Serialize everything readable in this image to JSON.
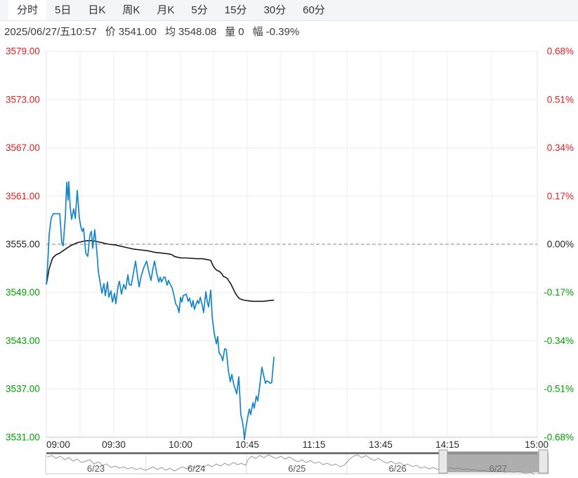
{
  "tabbar": {
    "tabs": [
      {
        "label": "分时",
        "active": true
      },
      {
        "label": "5日",
        "active": false
      },
      {
        "label": "日K",
        "active": false
      },
      {
        "label": "周K",
        "active": false
      },
      {
        "label": "月K",
        "active": false
      },
      {
        "label": "5分",
        "active": false
      },
      {
        "label": "15分",
        "active": false
      },
      {
        "label": "30分",
        "active": false
      },
      {
        "label": "60分",
        "active": false
      }
    ]
  },
  "info": {
    "datetime": "2025/06/27/五10:57",
    "price_label": "价",
    "price": "3541.00",
    "avg_label": "均",
    "avg": "3548.08",
    "volume_label": "量",
    "volume": "0",
    "change_label": "幅",
    "change": "-0.39%"
  },
  "colors": {
    "up": "#e02020",
    "down": "#00a000",
    "neutral": "#222222",
    "price_line": "#1685c8",
    "avg_line": "#1a1a1a",
    "grid": "#ececec",
    "zero_line": "#8a8a8a",
    "nav_line": "#9a9a9a",
    "nav_selection": "rgba(125,125,125,0.62)"
  },
  "chart_data": {
    "type": "line",
    "title": "",
    "xlabel": "",
    "ylabel": "",
    "base_price": 3555.0,
    "ylim": [
      3528,
      3582
    ],
    "grid": true,
    "y_ticks": [
      {
        "price": 3579,
        "label": "3579.00",
        "pct": "0.68%"
      },
      {
        "price": 3573,
        "label": "3573.00",
        "pct": "0.51%"
      },
      {
        "price": 3567,
        "label": "3567.00",
        "pct": "0.34%"
      },
      {
        "price": 3561,
        "label": "3561.00",
        "pct": "0.17%"
      },
      {
        "price": 3555,
        "label": "3555.00",
        "pct": "0.00%"
      },
      {
        "price": 3549,
        "label": "3549.00",
        "pct": "-0.17%"
      },
      {
        "price": 3543,
        "label": "3543.00",
        "pct": "-0.34%"
      },
      {
        "price": 3537,
        "label": "3537.00",
        "pct": "-0.51%"
      },
      {
        "price": 3531,
        "label": "3531.00",
        "pct": "-0.68%"
      }
    ],
    "x_ticks": [
      "09:00",
      "09:30",
      "10:00",
      "10:45",
      "11:15",
      "13:45",
      "14:15",
      "15:00"
    ],
    "session_minutes": 225,
    "series": [
      {
        "name": "price",
        "points": [
          [
            0,
            3550.0
          ],
          [
            0.6,
            3552.5
          ],
          [
            1.3,
            3556.3
          ],
          [
            2.2,
            3558.3
          ],
          [
            3.1,
            3558.8
          ],
          [
            4.4,
            3558.8
          ],
          [
            6,
            3558.8
          ],
          [
            6.9,
            3555.2
          ],
          [
            7.5,
            3554.8
          ],
          [
            8.5,
            3558.5
          ],
          [
            9.1,
            3562.7
          ],
          [
            9.7,
            3560.5
          ],
          [
            10,
            3562.8
          ],
          [
            10.7,
            3559.5
          ],
          [
            11.3,
            3558.1
          ],
          [
            12.2,
            3559.4
          ],
          [
            12.9,
            3558.2
          ],
          [
            13.8,
            3561.7
          ],
          [
            14.7,
            3558.3
          ],
          [
            15.4,
            3557.2
          ],
          [
            16,
            3556.6
          ],
          [
            16.6,
            3557.0
          ],
          [
            17.6,
            3553.9
          ],
          [
            18.5,
            3553.5
          ],
          [
            19.4,
            3556.1
          ],
          [
            20.1,
            3556.6
          ],
          [
            20.7,
            3554.5
          ],
          [
            21.6,
            3556.8
          ],
          [
            22.6,
            3553.9
          ],
          [
            23.2,
            3551.6
          ],
          [
            24.1,
            3550.1
          ],
          [
            24.8,
            3548.9
          ],
          [
            25.7,
            3550.1
          ],
          [
            26.3,
            3548.6
          ],
          [
            27.3,
            3550.3
          ],
          [
            27.9,
            3548.4
          ],
          [
            28.8,
            3549.2
          ],
          [
            29.5,
            3547.8
          ],
          [
            30.4,
            3548.9
          ],
          [
            31,
            3547.6
          ],
          [
            32,
            3549.8
          ],
          [
            32.6,
            3550.4
          ],
          [
            33.5,
            3548.8
          ],
          [
            34.5,
            3550.0
          ],
          [
            35.4,
            3549.4
          ],
          [
            36.4,
            3551.2
          ],
          [
            37,
            3550.0
          ],
          [
            37.9,
            3549.9
          ],
          [
            38.9,
            3551.5
          ],
          [
            39.8,
            3552.9
          ],
          [
            40.8,
            3550.8
          ],
          [
            41.4,
            3549.7
          ],
          [
            42.3,
            3551.0
          ],
          [
            43.6,
            3552.2
          ],
          [
            44.8,
            3552.9
          ],
          [
            45.8,
            3551.5
          ],
          [
            46.7,
            3550.5
          ],
          [
            47.6,
            3552.0
          ],
          [
            48.3,
            3552.9
          ],
          [
            49.2,
            3551.5
          ],
          [
            50.2,
            3550.3
          ],
          [
            50.8,
            3550.9
          ],
          [
            51.4,
            3550.3
          ],
          [
            52.4,
            3550.9
          ],
          [
            53,
            3550.9
          ],
          [
            53.9,
            3549.9
          ],
          [
            54.5,
            3550.5
          ],
          [
            55.5,
            3549.9
          ],
          [
            56.1,
            3549.6
          ],
          [
            57.1,
            3548.5
          ],
          [
            57.7,
            3547.6
          ],
          [
            58.6,
            3547.2
          ],
          [
            59.2,
            3546.5
          ],
          [
            59.9,
            3548.4
          ],
          [
            60.5,
            3547.8
          ],
          [
            61.1,
            3548.6
          ],
          [
            61.8,
            3548.7
          ],
          [
            62.4,
            3548.8
          ],
          [
            63.3,
            3547.9
          ],
          [
            63.9,
            3548.3
          ],
          [
            64.9,
            3547.2
          ],
          [
            65.5,
            3548.0
          ],
          [
            66.1,
            3546.9
          ],
          [
            66.8,
            3547.5
          ],
          [
            67.4,
            3548.0
          ],
          [
            68,
            3547.6
          ],
          [
            68.7,
            3548.4
          ],
          [
            69.6,
            3547.4
          ],
          [
            70.2,
            3546.5
          ],
          [
            71.2,
            3549.1
          ],
          [
            71.8,
            3547.9
          ],
          [
            72.4,
            3547.2
          ],
          [
            73.4,
            3549.3
          ],
          [
            74,
            3546.0
          ],
          [
            74.9,
            3544.0
          ],
          [
            75.9,
            3542.6
          ],
          [
            76.5,
            3543.5
          ],
          [
            77.1,
            3541.5
          ],
          [
            78.1,
            3541.1
          ],
          [
            78.7,
            3540.5
          ],
          [
            79.6,
            3542.0
          ],
          [
            80.3,
            3541.9
          ],
          [
            81.2,
            3539.4
          ],
          [
            82.1,
            3537.9
          ],
          [
            82.8,
            3538.8
          ],
          [
            83.7,
            3537.5
          ],
          [
            85,
            3536.4
          ],
          [
            85.9,
            3538.5
          ],
          [
            86.8,
            3533.8
          ],
          [
            87.5,
            3533.0
          ],
          [
            88.1,
            3531.8
          ],
          [
            88.4,
            3530.7
          ],
          [
            89,
            3532.0
          ],
          [
            89.7,
            3533.2
          ],
          [
            90.6,
            3534.5
          ],
          [
            91.2,
            3533.8
          ],
          [
            92.2,
            3535.3
          ],
          [
            92.8,
            3534.6
          ],
          [
            93.7,
            3536.1
          ],
          [
            94.4,
            3535.5
          ],
          [
            95.3,
            3537.5
          ],
          [
            96.2,
            3539.7
          ],
          [
            96.9,
            3538.8
          ],
          [
            97.8,
            3537.7
          ],
          [
            98.4,
            3538.0
          ],
          [
            99.1,
            3537.9
          ],
          [
            100,
            3537.7
          ],
          [
            100.6,
            3537.8
          ],
          [
            101.6,
            3541.0
          ]
        ]
      },
      {
        "name": "average",
        "points": [
          [
            0,
            3550.0
          ],
          [
            1.3,
            3552.0
          ],
          [
            2.8,
            3553.3
          ],
          [
            4.4,
            3553.7
          ],
          [
            6,
            3553.9
          ],
          [
            7.5,
            3554.2
          ],
          [
            9.1,
            3554.5
          ],
          [
            10.7,
            3554.8
          ],
          [
            12.2,
            3555.0
          ],
          [
            13.8,
            3555.2
          ],
          [
            15.4,
            3555.3
          ],
          [
            16.9,
            3555.4
          ],
          [
            18.5,
            3555.45
          ],
          [
            20.1,
            3555.45
          ],
          [
            21.6,
            3555.4
          ],
          [
            23.2,
            3555.3
          ],
          [
            24.8,
            3555.2
          ],
          [
            26.3,
            3555.1
          ],
          [
            27.9,
            3555.0
          ],
          [
            29.5,
            3554.95
          ],
          [
            31,
            3554.9
          ],
          [
            32.6,
            3554.8
          ],
          [
            35.7,
            3554.6
          ],
          [
            38.9,
            3554.4
          ],
          [
            42,
            3554.3
          ],
          [
            45.1,
            3554.2
          ],
          [
            48.3,
            3554.0
          ],
          [
            51.4,
            3553.9
          ],
          [
            54.5,
            3553.8
          ],
          [
            56.1,
            3553.7
          ],
          [
            57.1,
            3553.5
          ],
          [
            58.3,
            3553.4
          ],
          [
            60.2,
            3553.3
          ],
          [
            62.4,
            3553.3
          ],
          [
            64.6,
            3553.25
          ],
          [
            67.1,
            3553.2
          ],
          [
            69.6,
            3553.2
          ],
          [
            71.8,
            3553.1
          ],
          [
            73.4,
            3553.0
          ],
          [
            74.3,
            3552.4
          ],
          [
            75.2,
            3552.0
          ],
          [
            75.9,
            3551.8
          ],
          [
            76.5,
            3551.7
          ],
          [
            77.4,
            3551.6
          ],
          [
            78.4,
            3551.3
          ],
          [
            79,
            3551.0
          ],
          [
            79.9,
            3550.9
          ],
          [
            80.9,
            3550.7
          ],
          [
            81.5,
            3550.4
          ],
          [
            82.1,
            3550.2
          ],
          [
            82.8,
            3549.8
          ],
          [
            83.7,
            3549.3
          ],
          [
            84.6,
            3548.8
          ],
          [
            85.6,
            3548.4
          ],
          [
            86.5,
            3548.2
          ],
          [
            87.5,
            3548.1
          ],
          [
            89,
            3548.0
          ],
          [
            90.6,
            3547.95
          ],
          [
            92.2,
            3547.9
          ],
          [
            93.7,
            3547.9
          ],
          [
            95.3,
            3547.9
          ],
          [
            96.9,
            3547.9
          ],
          [
            98.4,
            3547.95
          ],
          [
            100,
            3548.0
          ],
          [
            101.6,
            3548.05
          ]
        ]
      }
    ]
  },
  "navigator": {
    "days": [
      "6/23",
      "6/24",
      "6/25",
      "6/26",
      "6/27"
    ],
    "selected_day": "6/27",
    "line": [
      [
        2,
        4
      ],
      [
        9,
        2
      ],
      [
        15,
        6
      ],
      [
        21,
        3
      ],
      [
        27,
        8
      ],
      [
        33,
        5
      ],
      [
        39,
        10
      ],
      [
        45,
        7
      ],
      [
        51,
        12
      ],
      [
        57,
        10
      ],
      [
        63,
        8
      ],
      [
        69,
        14
      ],
      [
        75,
        11
      ],
      [
        81,
        16
      ],
      [
        87,
        14
      ],
      [
        93,
        19
      ],
      [
        99,
        17
      ],
      [
        105,
        20
      ],
      [
        111,
        18
      ],
      [
        117,
        21
      ],
      [
        123,
        19
      ],
      [
        129,
        22
      ],
      [
        135,
        20
      ],
      [
        141,
        23
      ],
      [
        147,
        21
      ],
      [
        153,
        18
      ],
      [
        159,
        22
      ],
      [
        165,
        19
      ],
      [
        171,
        23
      ],
      [
        177,
        20
      ],
      [
        183,
        24
      ],
      [
        189,
        21
      ],
      [
        195,
        18
      ],
      [
        201,
        21
      ],
      [
        207,
        17
      ],
      [
        213,
        20
      ],
      [
        219,
        16
      ],
      [
        225,
        19
      ],
      [
        231,
        15
      ],
      [
        237,
        18
      ],
      [
        243,
        14
      ],
      [
        249,
        17
      ],
      [
        255,
        13
      ],
      [
        261,
        16
      ],
      [
        267,
        12
      ],
      [
        273,
        15
      ],
      [
        279,
        13
      ],
      [
        285,
        16
      ],
      [
        288,
        8
      ],
      [
        293,
        3
      ],
      [
        299,
        6
      ],
      [
        305,
        2
      ],
      [
        311,
        5
      ],
      [
        317,
        1
      ],
      [
        323,
        4
      ],
      [
        329,
        6
      ],
      [
        335,
        3
      ],
      [
        341,
        7
      ],
      [
        347,
        4
      ],
      [
        353,
        8
      ],
      [
        359,
        11
      ],
      [
        365,
        8
      ],
      [
        371,
        12
      ],
      [
        377,
        9
      ],
      [
        383,
        13
      ],
      [
        389,
        11
      ],
      [
        395,
        15
      ],
      [
        401,
        13
      ],
      [
        407,
        16
      ],
      [
        413,
        14
      ],
      [
        419,
        18
      ],
      [
        425,
        16
      ],
      [
        432,
        8
      ],
      [
        438,
        3
      ],
      [
        444,
        1
      ],
      [
        450,
        5
      ],
      [
        456,
        2
      ],
      [
        462,
        6
      ],
      [
        468,
        9
      ],
      [
        474,
        6
      ],
      [
        480,
        10
      ],
      [
        486,
        13
      ],
      [
        492,
        10
      ],
      [
        498,
        14
      ],
      [
        504,
        12
      ],
      [
        510,
        16
      ],
      [
        516,
        14
      ],
      [
        522,
        18
      ],
      [
        528,
        16
      ],
      [
        534,
        20
      ],
      [
        540,
        18
      ],
      [
        546,
        21
      ],
      [
        552,
        19
      ],
      [
        558,
        22
      ],
      [
        564,
        21
      ],
      [
        570,
        23
      ],
      [
        576,
        19
      ],
      [
        582,
        21
      ],
      [
        588,
        20
      ],
      [
        594,
        22
      ],
      [
        600,
        21
      ],
      [
        606,
        23
      ],
      [
        612,
        22
      ],
      [
        618,
        24
      ],
      [
        624,
        23
      ],
      [
        630,
        25
      ],
      [
        636,
        24
      ],
      [
        642,
        25
      ],
      [
        648,
        24
      ],
      [
        654,
        26
      ],
      [
        660,
        25
      ],
      [
        666,
        26
      ],
      [
        672,
        25
      ],
      [
        678,
        26
      ],
      [
        684,
        27
      ],
      [
        690,
        26
      ],
      [
        696,
        28
      ]
    ]
  }
}
